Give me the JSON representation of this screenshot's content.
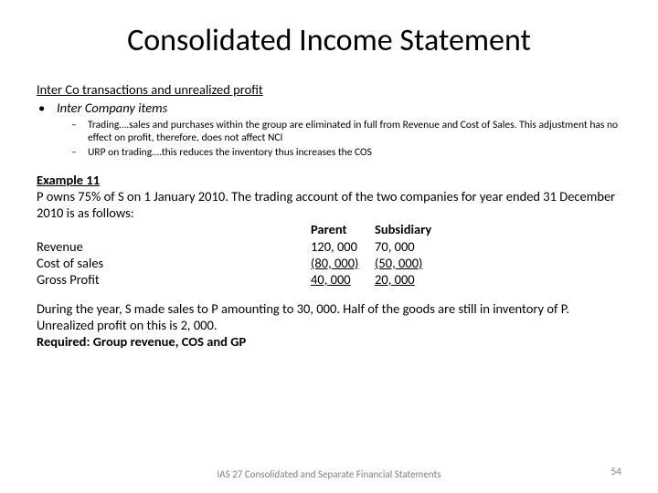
{
  "title": "Consolidated Income Statement",
  "section_heading": "Inter Co transactions and unrealized profit",
  "bullet_label": "Inter Company items",
  "sub_bullets": [
    "Trading….sales and purchases within the group are eliminated in full from Revenue and Cost of Sales. This adjustment has no effect on profit, therefore, does not affect NCI",
    "URP on trading….this reduces the inventory thus increases the COS"
  ],
  "example_heading": "Example 11",
  "example_intro_1": "P owns 75% of S on 1 January 2010. The trading account of the two companies for year ended 31 December 2010 is as follows:",
  "table": {
    "col_headers": [
      "Parent",
      "Subsidiary"
    ],
    "rows": [
      {
        "label": "Revenue",
        "parent": "120, 000",
        "sub": "70, 000",
        "underline": false
      },
      {
        "label": "Cost of sales",
        "parent": "(80, 000)",
        "sub": "(50, 000)",
        "underline": true
      },
      {
        "label": "Gross Profit",
        "parent": "40, 000 ",
        "sub": "20, 000 ",
        "underline": true
      }
    ]
  },
  "closing_para": "During the year, S made sales to P amounting to 30, 000. Half of the goods are still in inventory of P. Unrealized profit on this is 2, 000.",
  "required_label": "Required:",
  "required_text": " Group revenue, COS and GP",
  "footer_text": "IAS 27 Consolidated and Separate Financial Statements",
  "page_number": "54"
}
